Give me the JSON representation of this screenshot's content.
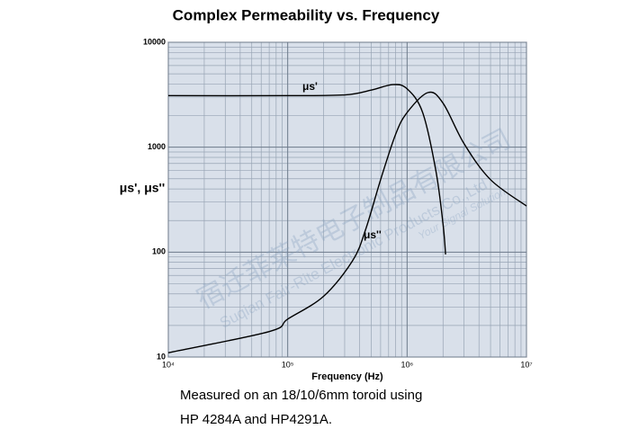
{
  "chart_data": {
    "type": "line",
    "title": "Complex Permeability vs. Frequency",
    "xlabel": "Frequency (Hz)",
    "ylabel": "μs', μs''",
    "xscale": "log",
    "yscale": "log",
    "grid": true,
    "xlim": [
      10000,
      10000000
    ],
    "ylim": [
      10,
      10000
    ],
    "xticks": [
      {
        "value": 10000,
        "label": "10⁴"
      },
      {
        "value": 100000,
        "label": "10⁵"
      },
      {
        "value": 1000000,
        "label": "10⁶"
      },
      {
        "value": 10000000,
        "label": "10⁷"
      }
    ],
    "yticks": [
      10,
      100,
      1000,
      10000
    ],
    "series": [
      {
        "name": "μs'",
        "color": "#000000",
        "x": [
          10000,
          100000,
          300000,
          500000,
          760000,
          1000000,
          1350000,
          1740000,
          2000000,
          2100000
        ],
        "values": [
          3100,
          3100,
          3150,
          3500,
          3950,
          3600,
          2140,
          600,
          185,
          95
        ]
      },
      {
        "name": "μs''",
        "color": "#000000",
        "x": [
          10000,
          70000,
          100000,
          200000,
          350000,
          450000,
          600000,
          800000,
          1000000,
          1500000,
          2000000,
          3000000,
          5000000,
          10000000
        ],
        "values": [
          11,
          17.5,
          23,
          38,
          83,
          165,
          490,
          1320,
          2140,
          3320,
          2630,
          1080,
          490,
          275
        ]
      }
    ],
    "annotations": [
      "μs'",
      "μs''"
    ],
    "caption": [
      "Measured on an 18/10/6mm toroid using",
      "HP 4284A and HP4291A."
    ],
    "watermark": [
      "宿迁菲莱特电子制品有限公司",
      "Suqian Fair-Rite Electronic Products Co.,Ltd",
      "Your Signal Solution"
    ]
  }
}
